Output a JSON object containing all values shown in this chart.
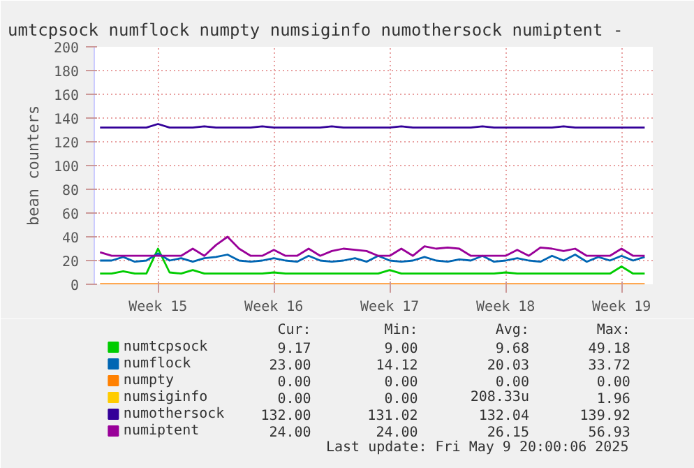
{
  "chart_data": {
    "type": "line",
    "title": "umtcpsock numflock numpty numsiginfo numothersock numiptent -",
    "ylabel": "bean counters",
    "categories": [
      null,
      null,
      null,
      null,
      null,
      "Week 15",
      null,
      null,
      null,
      null,
      null,
      null,
      null,
      null,
      null,
      "Week 16",
      null,
      null,
      null,
      null,
      null,
      null,
      null,
      null,
      null,
      "Week 17",
      null,
      null,
      null,
      null,
      null,
      null,
      null,
      null,
      null,
      "Week 18",
      null,
      null,
      null,
      null,
      null,
      null,
      null,
      null,
      null,
      "Week 19",
      null,
      null
    ],
    "series": [
      {
        "name": "numtcpsock",
        "color": "#00cc00",
        "values": [
          9,
          9,
          11,
          9,
          9,
          30,
          10,
          9,
          12,
          9,
          9,
          9,
          9,
          9,
          9,
          10,
          9,
          9,
          9,
          9,
          9,
          9,
          9,
          9,
          9,
          12,
          9,
          9,
          9,
          9,
          9,
          9,
          9,
          9,
          9,
          10,
          9,
          9,
          9,
          9,
          9,
          9,
          9,
          9,
          9,
          15,
          9,
          9
        ]
      },
      {
        "name": "numflock",
        "color": "#0066b3",
        "values": [
          20,
          20,
          23,
          19,
          20,
          26,
          20,
          22,
          19,
          22,
          23,
          25,
          20,
          19,
          20,
          22,
          20,
          19,
          24,
          20,
          19,
          20,
          22,
          19,
          24,
          20,
          19,
          20,
          23,
          20,
          19,
          21,
          20,
          24,
          19,
          20,
          22,
          20,
          19,
          24,
          20,
          25,
          19,
          23,
          20,
          24,
          20,
          23
        ]
      },
      {
        "name": "numpty",
        "color": "#ff8000",
        "values": [
          0,
          0,
          0,
          0,
          0,
          0,
          0,
          0,
          0,
          0,
          0,
          0,
          0,
          0,
          0,
          0,
          0,
          0,
          0,
          0,
          0,
          0,
          0,
          0,
          0,
          0,
          0,
          0,
          0,
          0,
          0,
          0,
          0,
          0,
          0,
          0,
          0,
          0,
          0,
          0,
          0,
          0,
          0,
          0,
          0,
          0,
          0,
          0
        ]
      },
      {
        "name": "numsiginfo",
        "color": "#ffcc00",
        "values": [
          null,
          null,
          null,
          null,
          null,
          null,
          null,
          null,
          null,
          null,
          null,
          null,
          null,
          null,
          null,
          null,
          null,
          null,
          null,
          null,
          null,
          null,
          null,
          null,
          null,
          null,
          null,
          null,
          null,
          null,
          null,
          null,
          null,
          null,
          null,
          null,
          null,
          null,
          null,
          null,
          null,
          null,
          null,
          null,
          null,
          null,
          null,
          null
        ]
      },
      {
        "name": "numothersock",
        "color": "#330099",
        "values": [
          132,
          132,
          132,
          132,
          132,
          135,
          132,
          132,
          132,
          133,
          132,
          132,
          132,
          132,
          133,
          132,
          132,
          132,
          132,
          132,
          133,
          132,
          132,
          132,
          132,
          132,
          133,
          132,
          132,
          132,
          132,
          132,
          132,
          133,
          132,
          132,
          132,
          132,
          132,
          132,
          133,
          132,
          132,
          132,
          132,
          132,
          132,
          132
        ]
      },
      {
        "name": "numiptent",
        "color": "#990099",
        "values": [
          27,
          24,
          24,
          24,
          24,
          24,
          24,
          24,
          30,
          24,
          33,
          40,
          30,
          24,
          24,
          29,
          24,
          24,
          30,
          24,
          28,
          30,
          29,
          28,
          24,
          24,
          30,
          24,
          32,
          30,
          31,
          30,
          24,
          24,
          24,
          24,
          29,
          24,
          31,
          30,
          28,
          30,
          24,
          24,
          24,
          30,
          24,
          24
        ]
      }
    ],
    "ylim": [
      0,
      200
    ],
    "yticks": [
      0,
      20,
      40,
      60,
      80,
      100,
      120,
      140,
      160,
      180,
      200
    ],
    "grid": true,
    "legend": "bottom",
    "annotations": [
      "Cur:",
      "Min:",
      "Avg:",
      "Max:",
      "9.17",
      "9.00",
      "9.68",
      "49.18",
      "23.00",
      "14.12",
      "20.03",
      "33.72",
      "0.00",
      "0.00",
      "0.00",
      "0.00",
      "0.00",
      "0.00",
      "208.33u",
      "1.96",
      "132.00",
      "131.02",
      "132.04",
      "139.92",
      "24.00",
      "24.00",
      "26.15",
      "56.93",
      "Last update: Fri May  9 20:00:06 2025"
    ]
  }
}
